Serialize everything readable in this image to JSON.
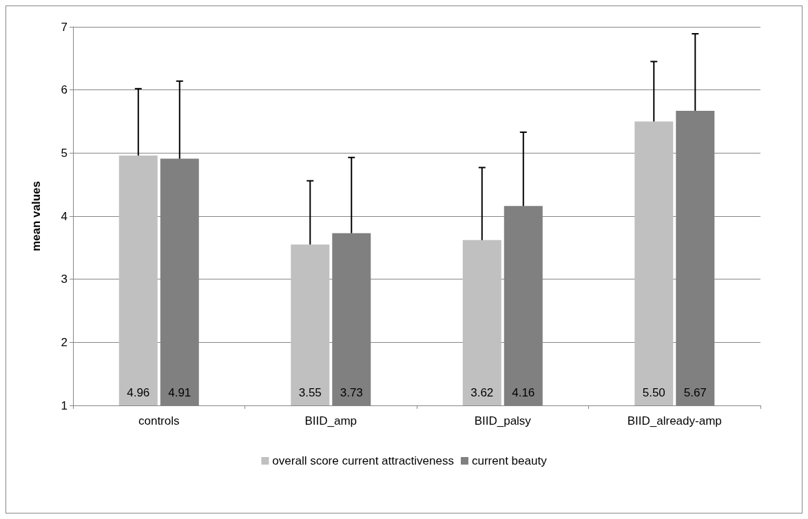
{
  "chart_data": {
    "type": "bar",
    "ylabel": "mean values",
    "categories": [
      "controls",
      "BIID_amp",
      "BIID_palsy",
      "BIID_already-amp"
    ],
    "series": [
      {
        "name": "overall score current attractiveness",
        "color": "#c0c0c0",
        "values": [
          4.96,
          3.55,
          3.62,
          5.5
        ],
        "value_labels": [
          "4.96",
          "3.55",
          "3.62",
          "5.50"
        ],
        "errors": [
          [
            4.96,
            6.02
          ],
          [
            3.55,
            4.56
          ],
          [
            3.62,
            4.77
          ],
          [
            5.5,
            6.45
          ]
        ]
      },
      {
        "name": "current beauty",
        "color": "#808080",
        "values": [
          4.91,
          3.73,
          4.16,
          5.67
        ],
        "value_labels": [
          "4.91",
          "3.73",
          "4.16",
          "5.67"
        ],
        "errors": [
          [
            4.91,
            6.14
          ],
          [
            3.73,
            4.93
          ],
          [
            4.16,
            5.33
          ],
          [
            5.67,
            6.89
          ]
        ]
      }
    ],
    "ylim": [
      1,
      7
    ],
    "yticks": [
      1,
      2,
      3,
      4,
      5,
      6,
      7
    ],
    "grid": "y",
    "legend": "bottom"
  }
}
